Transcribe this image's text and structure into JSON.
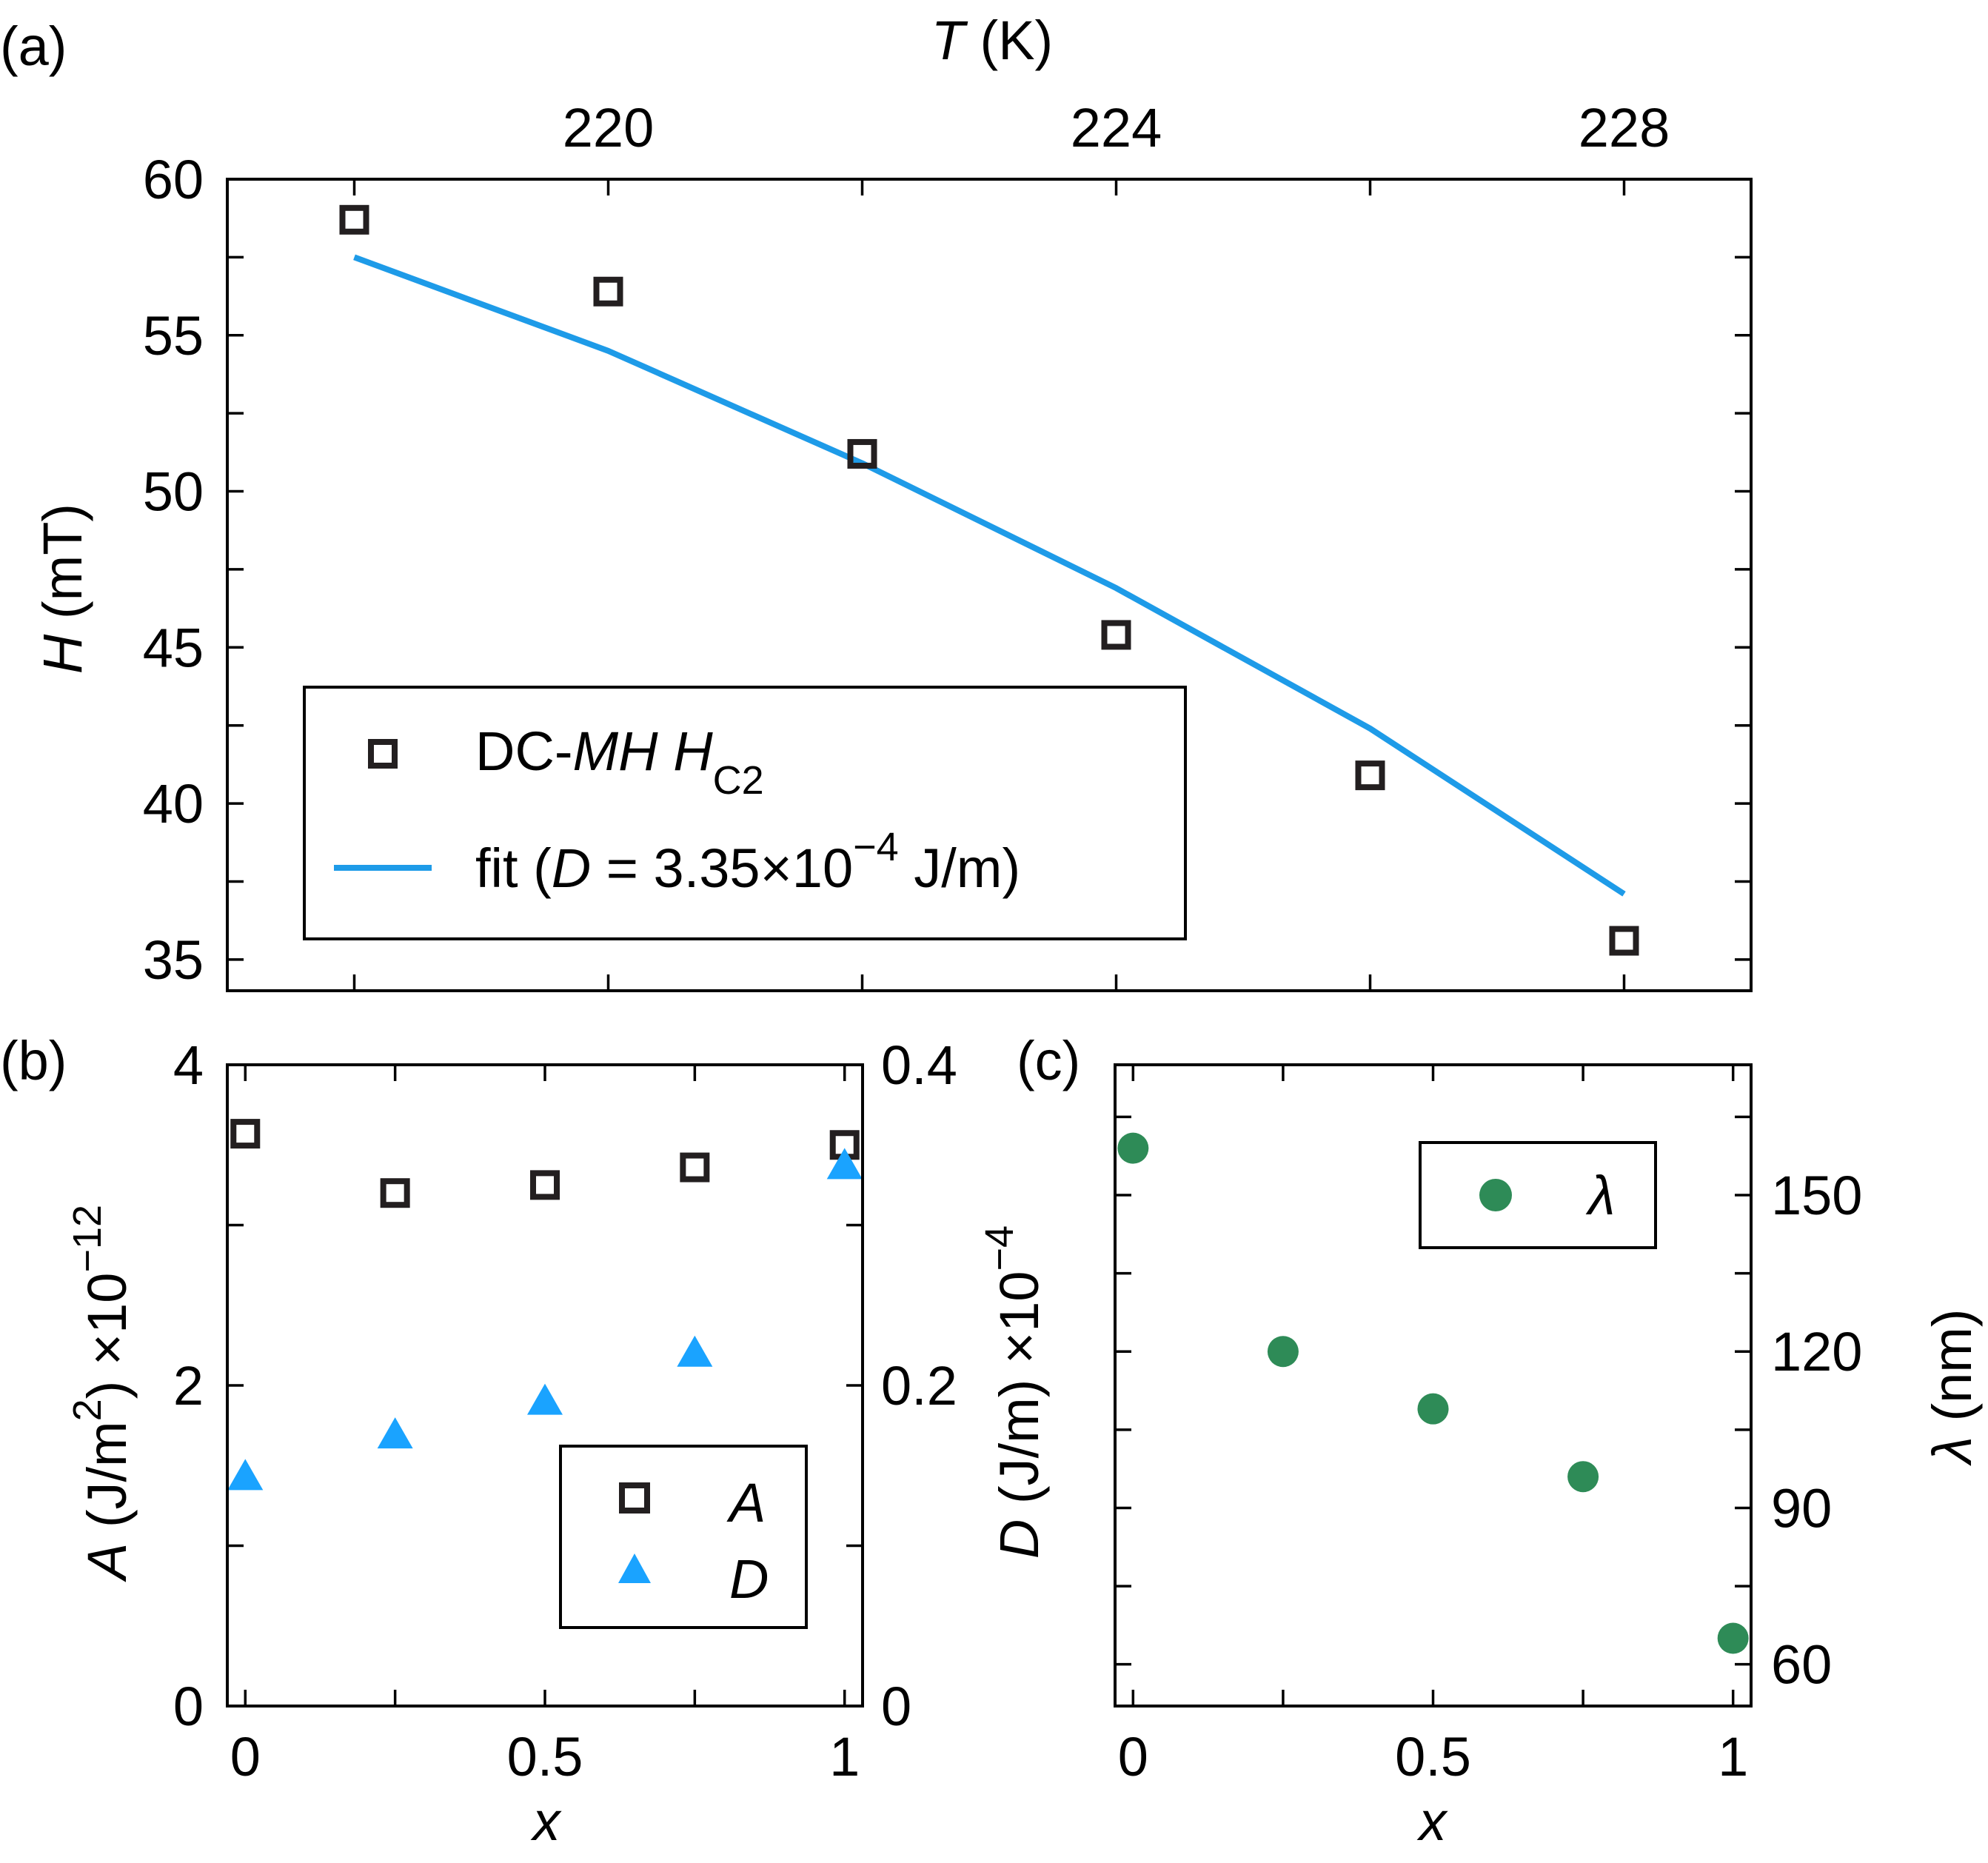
{
  "panels": {
    "a_label": "(a)",
    "b_label": "(b)",
    "c_label": "(c)"
  },
  "colors": {
    "fit_line": "#1e9be8",
    "D_marker": "#1aa3ff",
    "lambda_marker": "#2e8b57",
    "A_marker": "#231f20"
  },
  "chart_data": [
    {
      "id": "a",
      "type": "scatter",
      "title": "",
      "xlabel_symbol": "T",
      "xlabel_unit": "(K)",
      "ylabel_symbol": "H",
      "ylabel_unit": "(mT)",
      "xlim": [
        217,
        229
      ],
      "ylim": [
        34,
        60
      ],
      "x_ticks": [
        220,
        224,
        228
      ],
      "x_tick_labels": [
        "220",
        "224",
        "228"
      ],
      "y_ticks": [
        35,
        40,
        45,
        50,
        55,
        60
      ],
      "y_tick_labels": [
        "35",
        "40",
        "45",
        "50",
        "55",
        "60"
      ],
      "series": [
        {
          "name": "DC-MH H_C2",
          "marker": "open-square",
          "x": [
            218,
            220,
            222,
            224,
            226,
            228
          ],
          "y": [
            58.7,
            56.4,
            51.2,
            45.4,
            40.9,
            35.6
          ]
        },
        {
          "name": "fit (D = 3.35×10^-4 J/m)",
          "marker": "line",
          "x": [
            218,
            220,
            222,
            224,
            226,
            228
          ],
          "y": [
            57.5,
            54.5,
            50.9,
            46.9,
            42.4,
            37.1
          ]
        }
      ],
      "legend": {
        "entry1_prefix": "DC-",
        "entry1_italic": "MH",
        "entry1_symbol": "H",
        "entry1_sub": "C2",
        "entry2_prefix": "fit (",
        "entry2_symbol": "D",
        "entry2_mid": " = 3.35×10",
        "entry2_exp": "−4",
        "entry2_suffix": " J/m)"
      },
      "legend_position": "bottom-left"
    },
    {
      "id": "b",
      "type": "scatter",
      "xlabel": "x",
      "ylabel_left_symbol": "A",
      "ylabel_left_unit": " (J/m",
      "ylabel_left_unit_exp": "2",
      "ylabel_left_unit_close": ") ×10",
      "ylabel_left_exp": "−12",
      "xlim": [
        -0.03,
        1.03
      ],
      "ylim_left": [
        0,
        4
      ],
      "ylim_right": [
        0,
        0.4
      ],
      "x_ticks": [
        0,
        0.5,
        1
      ],
      "x_tick_labels": [
        "0",
        "0.5",
        "1"
      ],
      "y_left_ticks": [
        0,
        2,
        4
      ],
      "y_left_tick_labels": [
        "0",
        "2",
        "4"
      ],
      "y_right_ticks": [
        0,
        0.2,
        0.4
      ],
      "y_right_tick_labels": [
        "0",
        "0.2",
        "0.4"
      ],
      "series": [
        {
          "name": "A",
          "marker": "open-square",
          "axis": "left",
          "x": [
            0,
            0.25,
            0.5,
            0.75,
            1
          ],
          "y": [
            3.57,
            3.2,
            3.25,
            3.36,
            3.5
          ]
        },
        {
          "name": "D",
          "marker": "triangle",
          "axis": "right",
          "x": [
            0,
            0.25,
            0.5,
            0.75,
            1
          ],
          "y": [
            0.143,
            0.169,
            0.19,
            0.22,
            0.337
          ]
        }
      ],
      "legend_position": "bottom-right"
    },
    {
      "id": "c",
      "type": "scatter",
      "xlabel": "x",
      "ylabel_left_symbol": "D",
      "ylabel_left_unit": " (J/m) ×10",
      "ylabel_left_exp": "−4",
      "ylabel_right_symbol": "λ",
      "ylabel_right_unit": " (nm)",
      "xlim": [
        -0.03,
        1.03
      ],
      "ylim_right": [
        52,
        175
      ],
      "x_ticks": [
        0,
        0.5,
        1
      ],
      "x_tick_labels": [
        "0",
        "0.5",
        "1"
      ],
      "y_right_ticks": [
        60,
        90,
        120,
        150
      ],
      "y_right_tick_labels": [
        "60",
        "90",
        "120",
        "150"
      ],
      "series": [
        {
          "name": "λ",
          "marker": "filled-circle",
          "axis": "right",
          "x": [
            0,
            0.25,
            0.5,
            0.75,
            1
          ],
          "y": [
            159,
            120,
            109,
            96,
            65
          ]
        }
      ],
      "legend_position": "top-right"
    }
  ]
}
